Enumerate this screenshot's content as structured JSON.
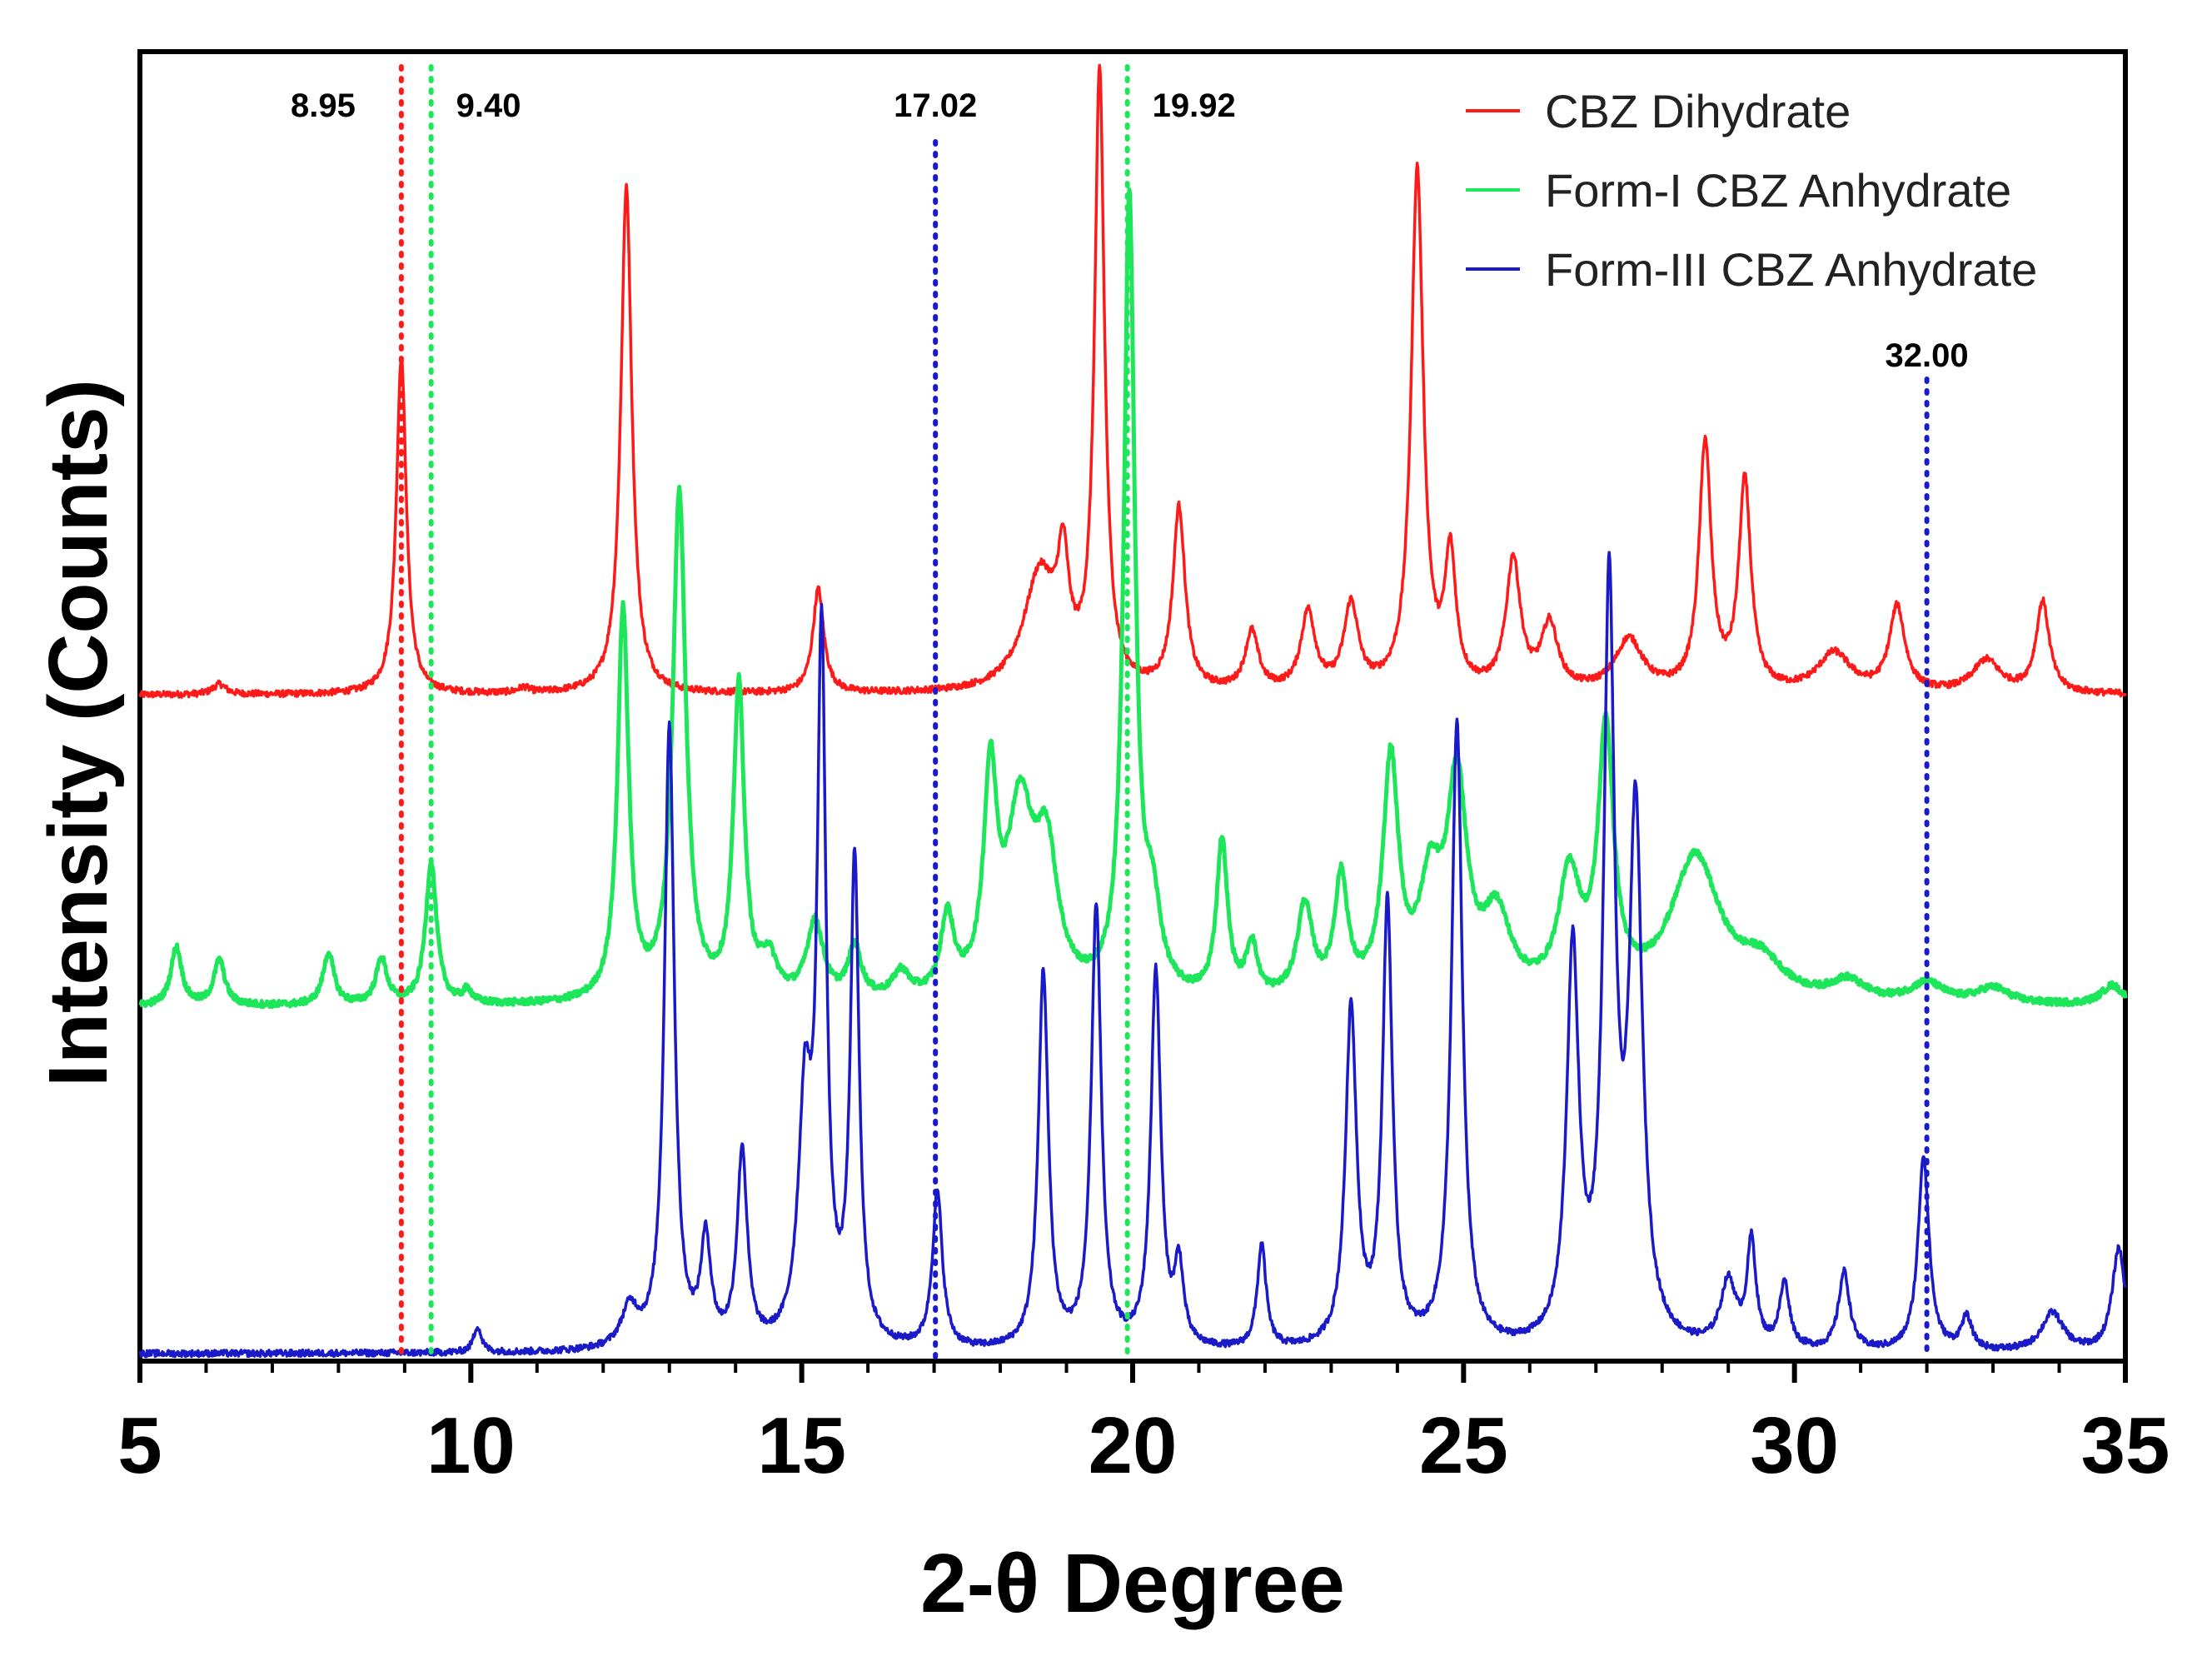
{
  "chart_data": {
    "type": "line",
    "title": "",
    "xlabel": "2-θ Degree",
    "ylabel": "Intensity (Counts)",
    "xlim": [
      5,
      35
    ],
    "ylim": [
      0,
      100
    ],
    "xticks": [
      5,
      10,
      15,
      20,
      25,
      30,
      35
    ],
    "xtick_labels": [
      "5",
      "10",
      "15",
      "20",
      "25",
      "30",
      "35"
    ],
    "yticks_shown": false,
    "grid": false,
    "legend_position": "top-right",
    "series": [
      {
        "name": "CBZ Dihydrate",
        "color": "#ff1a1a",
        "baseline": 51,
        "peaks": [
          {
            "x": 6.2,
            "h": 0.8,
            "w": 0.12
          },
          {
            "x": 8.95,
            "h": 26,
            "w": 0.09
          },
          {
            "x": 10.8,
            "h": 0.4,
            "w": 0.1
          },
          {
            "x": 12.35,
            "h": 39,
            "w": 0.1
          },
          {
            "x": 15.25,
            "h": 8,
            "w": 0.1
          },
          {
            "x": 18.6,
            "h": 9,
            "w": 0.3
          },
          {
            "x": 18.95,
            "h": 8,
            "w": 0.1
          },
          {
            "x": 19.5,
            "h": 47,
            "w": 0.09
          },
          {
            "x": 20.7,
            "h": 14,
            "w": 0.11
          },
          {
            "x": 21.8,
            "h": 4.5,
            "w": 0.12
          },
          {
            "x": 22.65,
            "h": 6,
            "w": 0.13
          },
          {
            "x": 23.3,
            "h": 6.5,
            "w": 0.13
          },
          {
            "x": 24.3,
            "h": 40,
            "w": 0.11
          },
          {
            "x": 24.8,
            "h": 10,
            "w": 0.1
          },
          {
            "x": 25.75,
            "h": 10,
            "w": 0.13
          },
          {
            "x": 26.3,
            "h": 5,
            "w": 0.15
          },
          {
            "x": 27.5,
            "h": 4,
            "w": 0.25
          },
          {
            "x": 28.65,
            "h": 19,
            "w": 0.11
          },
          {
            "x": 29.25,
            "h": 16,
            "w": 0.11
          },
          {
            "x": 30.6,
            "h": 3,
            "w": 0.3
          },
          {
            "x": 31.55,
            "h": 6.5,
            "w": 0.14
          },
          {
            "x": 32.9,
            "h": 2.5,
            "w": 0.25
          },
          {
            "x": 33.75,
            "h": 7,
            "w": 0.12
          }
        ]
      },
      {
        "name": "Form-I CBZ Anhydrate",
        "color": "#1ee65a",
        "baseline": 27,
        "peaks": [
          {
            "x": 5.55,
            "h": 4.5,
            "w": 0.1
          },
          {
            "x": 6.2,
            "h": 3.5,
            "w": 0.1
          },
          {
            "x": 7.85,
            "h": 4,
            "w": 0.1
          },
          {
            "x": 8.65,
            "h": 3.5,
            "w": 0.1
          },
          {
            "x": 9.4,
            "h": 11,
            "w": 0.1
          },
          {
            "x": 9.95,
            "h": 1,
            "w": 0.08
          },
          {
            "x": 12.3,
            "h": 30,
            "w": 0.1
          },
          {
            "x": 13.15,
            "h": 39,
            "w": 0.12
          },
          {
            "x": 14.05,
            "h": 24,
            "w": 0.1
          },
          {
            "x": 14.5,
            "h": 3,
            "w": 0.15
          },
          {
            "x": 15.2,
            "h": 6,
            "w": 0.15
          },
          {
            "x": 15.8,
            "h": 4,
            "w": 0.12
          },
          {
            "x": 16.5,
            "h": 2,
            "w": 0.15
          },
          {
            "x": 17.2,
            "h": 6,
            "w": 0.12
          },
          {
            "x": 17.85,
            "h": 16,
            "w": 0.12
          },
          {
            "x": 18.3,
            "h": 14,
            "w": 0.25
          },
          {
            "x": 18.7,
            "h": 10,
            "w": 0.2
          },
          {
            "x": 19.95,
            "h": 61,
            "w": 0.1
          },
          {
            "x": 20.3,
            "h": 6,
            "w": 0.15
          },
          {
            "x": 21.35,
            "h": 12,
            "w": 0.1
          },
          {
            "x": 21.8,
            "h": 4,
            "w": 0.1
          },
          {
            "x": 22.6,
            "h": 7,
            "w": 0.14
          },
          {
            "x": 23.15,
            "h": 9,
            "w": 0.12
          },
          {
            "x": 23.9,
            "h": 18,
            "w": 0.14
          },
          {
            "x": 24.5,
            "h": 8,
            "w": 0.2
          },
          {
            "x": 24.9,
            "h": 16,
            "w": 0.18
          },
          {
            "x": 25.5,
            "h": 6,
            "w": 0.25
          },
          {
            "x": 26.6,
            "h": 9,
            "w": 0.2
          },
          {
            "x": 27.15,
            "h": 20,
            "w": 0.14
          },
          {
            "x": 28.5,
            "h": 11,
            "w": 0.45
          },
          {
            "x": 29.5,
            "h": 2.5,
            "w": 0.4
          },
          {
            "x": 30.8,
            "h": 1.5,
            "w": 0.3
          },
          {
            "x": 32.0,
            "h": 1.5,
            "w": 0.3
          },
          {
            "x": 33.0,
            "h": 1.2,
            "w": 0.3
          },
          {
            "x": 34.8,
            "h": 1.5,
            "w": 0.2
          }
        ]
      },
      {
        "name": "Form-III CBZ Anhydrate",
        "color": "#1a1ac8",
        "baseline": 0.3,
        "peaks": [
          {
            "x": 10.1,
            "h": 2,
            "w": 0.07
          },
          {
            "x": 12.4,
            "h": 3,
            "w": 0.15
          },
          {
            "x": 13.0,
            "h": 48,
            "w": 0.09
          },
          {
            "x": 13.55,
            "h": 8,
            "w": 0.09
          },
          {
            "x": 14.1,
            "h": 15,
            "w": 0.09
          },
          {
            "x": 15.05,
            "h": 18,
            "w": 0.12
          },
          {
            "x": 15.3,
            "h": 53,
            "w": 0.08
          },
          {
            "x": 15.8,
            "h": 37,
            "w": 0.08
          },
          {
            "x": 17.05,
            "h": 12,
            "w": 0.09
          },
          {
            "x": 18.65,
            "h": 29,
            "w": 0.09
          },
          {
            "x": 19.45,
            "h": 34,
            "w": 0.09
          },
          {
            "x": 20.35,
            "h": 29,
            "w": 0.09
          },
          {
            "x": 20.7,
            "h": 6,
            "w": 0.08
          },
          {
            "x": 21.95,
            "h": 8,
            "w": 0.08
          },
          {
            "x": 23.3,
            "h": 26,
            "w": 0.1
          },
          {
            "x": 23.85,
            "h": 34,
            "w": 0.09
          },
          {
            "x": 24.9,
            "h": 48,
            "w": 0.1
          },
          {
            "x": 26.65,
            "h": 30,
            "w": 0.11
          },
          {
            "x": 27.2,
            "h": 57,
            "w": 0.1
          },
          {
            "x": 27.6,
            "h": 40,
            "w": 0.12
          },
          {
            "x": 29.0,
            "h": 5,
            "w": 0.14
          },
          {
            "x": 29.35,
            "h": 8,
            "w": 0.08
          },
          {
            "x": 29.85,
            "h": 5,
            "w": 0.09
          },
          {
            "x": 30.75,
            "h": 6,
            "w": 0.1
          },
          {
            "x": 31.95,
            "h": 15,
            "w": 0.1
          },
          {
            "x": 32.6,
            "h": 2.5,
            "w": 0.1
          },
          {
            "x": 33.9,
            "h": 3,
            "w": 0.2
          },
          {
            "x": 34.9,
            "h": 8,
            "w": 0.12
          }
        ]
      }
    ],
    "reference_lines": [
      {
        "x": 8.95,
        "label": "8.95",
        "color": "#ff1a1a",
        "label_side": "left"
      },
      {
        "x": 9.4,
        "label": "9.40",
        "color": "#1ee65a",
        "label_side": "right"
      },
      {
        "x": 17.02,
        "label": "17.02",
        "color": "#1a1ac8",
        "label_side": "center"
      },
      {
        "x": 19.92,
        "label": "19.92",
        "color": "#1ee65a",
        "label_side": "right"
      },
      {
        "x": 32.0,
        "label": "32.00",
        "color": "#1a1ac8",
        "label_side": "center"
      }
    ]
  }
}
